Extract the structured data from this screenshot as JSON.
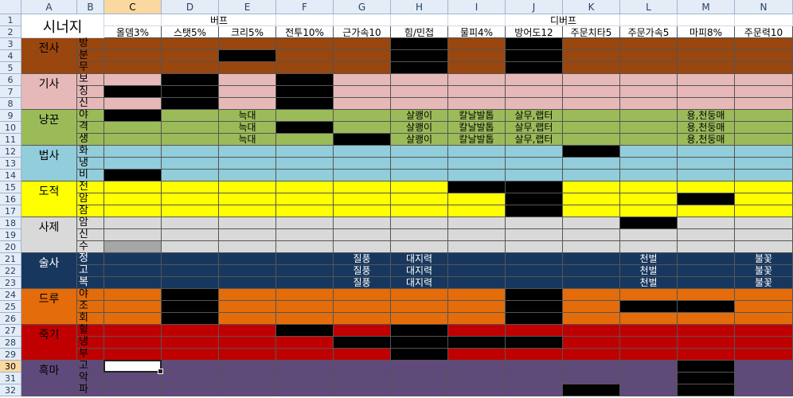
{
  "sheet": {
    "title": "시너지",
    "columns": [
      "A",
      "B",
      "C",
      "D",
      "E",
      "F",
      "G",
      "H",
      "I",
      "J",
      "K",
      "L",
      "M",
      "N"
    ],
    "row_numbers": [
      "1",
      "2",
      "3",
      "4",
      "5",
      "6",
      "7",
      "8",
      "9",
      "10",
      "11",
      "12",
      "13",
      "14",
      "15",
      "16",
      "17",
      "18",
      "19",
      "20",
      "21",
      "22",
      "23",
      "24",
      "25",
      "26",
      "27",
      "28",
      "29",
      "30",
      "31",
      "32"
    ],
    "selected_cell": "C30",
    "group_headers": {
      "buff": "버프",
      "debuff": "디버프"
    },
    "stat_headers": [
      "올뎀3%",
      "스탯5%",
      "크리5%",
      "전투10%",
      "근가속10",
      "힘/민첩",
      "물피4%",
      "방어도12",
      "주문치타5",
      "주문가속5",
      "마피8%",
      "주문력10"
    ],
    "classes": [
      {
        "name": "전사",
        "color": "#99460f",
        "text": "#000000",
        "specs": [
          "방",
          "분",
          "무"
        ]
      },
      {
        "name": "기사",
        "color": "#e6b8b8",
        "text": "#000000",
        "specs": [
          "보",
          "징",
          "신"
        ]
      },
      {
        "name": "냥꾼",
        "color": "#9bbb59",
        "text": "#000000",
        "specs": [
          "야",
          "격",
          "생"
        ]
      },
      {
        "name": "법사",
        "color": "#92cddc",
        "text": "#000000",
        "specs": [
          "화",
          "냉",
          "비"
        ]
      },
      {
        "name": "도적",
        "color": "#ffff00",
        "text": "#000000",
        "specs": [
          "전",
          "암",
          "잠"
        ]
      },
      {
        "name": "사제",
        "color": "#d9d9d9",
        "text": "#000000",
        "specs": [
          "암",
          "신",
          "수"
        ]
      },
      {
        "name": "술사",
        "color": "#17375e",
        "text": "#ffffff",
        "specs": [
          "정",
          "고",
          "복"
        ]
      },
      {
        "name": "드루",
        "color": "#e46c0a",
        "text": "#000000",
        "specs": [
          "야",
          "조",
          "회"
        ]
      },
      {
        "name": "죽기",
        "color": "#c00000",
        "text": "#000000",
        "specs": [
          "혈",
          "냉",
          "부"
        ]
      },
      {
        "name": "흑마",
        "color": "#604a7b",
        "text": "#000000",
        "specs": [
          "고",
          "악",
          "파"
        ]
      }
    ],
    "notes": {
      "neukdae": "늑대",
      "salkwaengi": "살쾡이",
      "kaldalbaltop": "칼날발톱",
      "salmu_raeptor": "살무,랩터",
      "yongcheondongmae": "용,천둥매",
      "jilpung": "질풍",
      "daejiryeok": "대지력",
      "cheonbeol": "천벌",
      "bulkkot": "불꽃"
    },
    "black_marker": "#000000",
    "header_bg": "#e4ecf7",
    "grid_line": "#9eb6ce"
  }
}
